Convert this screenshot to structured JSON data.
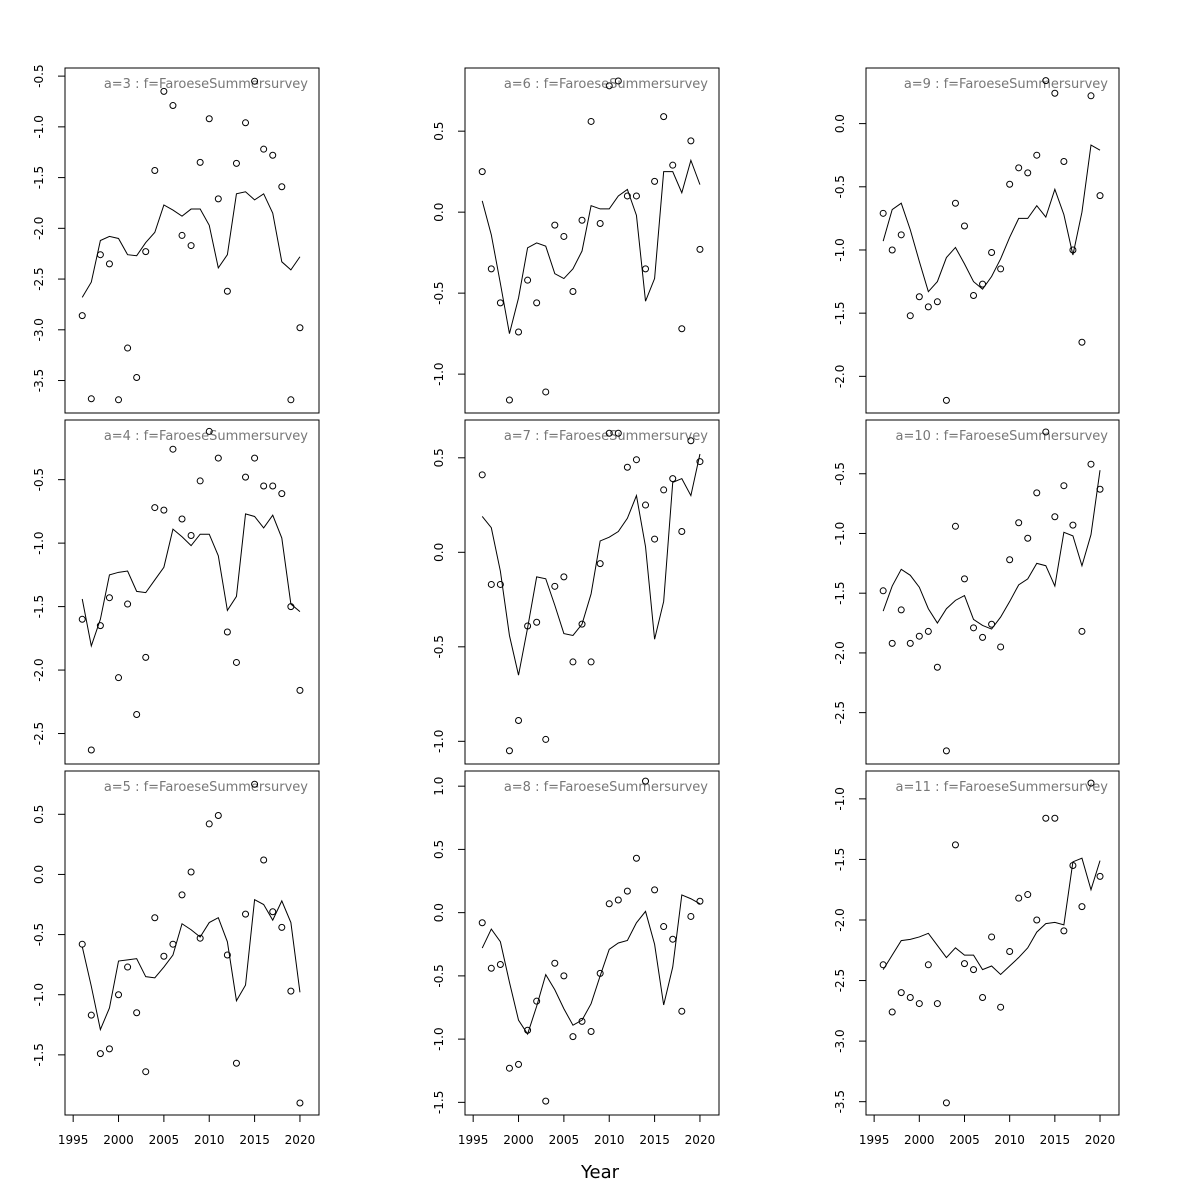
{
  "xlabel": "Year",
  "chart_data": [
    {
      "type": "scatter",
      "title": "a=3 : f=FaroeseSummersurvey",
      "x": [
        1996,
        1997,
        1998,
        1999,
        2000,
        2001,
        2002,
        2003,
        2004,
        2005,
        2006,
        2007,
        2008,
        2009,
        2010,
        2011,
        2012,
        2013,
        2014,
        2015,
        2016,
        2017,
        2018,
        2019,
        2020
      ],
      "series": [
        {
          "mode": "points",
          "color": "#000000",
          "values": [
            -2.86,
            -3.68,
            -2.26,
            -2.35,
            -3.69,
            -3.18,
            -3.47,
            -2.23,
            -1.43,
            -0.65,
            -0.79,
            -2.07,
            -2.17,
            -1.35,
            -0.92,
            -1.71,
            -2.62,
            -1.36,
            -0.96,
            -0.55,
            -1.22,
            -1.28,
            -1.59,
            -3.69,
            -2.98
          ]
        },
        {
          "mode": "line",
          "color": "#000000",
          "values": [
            -2.68,
            -2.53,
            -2.12,
            -2.08,
            -2.1,
            -2.26,
            -2.27,
            -2.14,
            -2.04,
            -1.77,
            -1.82,
            -1.88,
            -1.81,
            -1.81,
            -1.97,
            -2.39,
            -2.26,
            -1.66,
            -1.64,
            -1.72,
            -1.66,
            -1.85,
            -2.33,
            -2.41,
            -2.28
          ]
        }
      ],
      "xlim": [
        1994.1,
        2022.1
      ],
      "ylim": [
        -3.82,
        -0.42
      ],
      "yticks": [
        -0.5,
        {
          "value": -1,
          "label": "-1.0"
        },
        -1.5,
        {
          "value": -2,
          "label": "-2.0"
        },
        -2.5,
        {
          "value": -3,
          "label": "-3.0"
        },
        -3.5
      ]
    },
    {
      "type": "scatter",
      "title": "a=6 : f=FaroeseSummersurvey",
      "x": [
        1996,
        1997,
        1998,
        1999,
        2000,
        2001,
        2002,
        2003,
        2004,
        2005,
        2006,
        2007,
        2008,
        2009,
        2010,
        2011,
        2012,
        2013,
        2014,
        2015,
        2016,
        2017,
        2018,
        2019,
        2020
      ],
      "series": [
        {
          "mode": "points",
          "color": "#000000",
          "values": [
            0.25,
            -0.35,
            -0.56,
            -1.16,
            -0.74,
            -0.42,
            -0.56,
            -1.11,
            -0.08,
            -0.15,
            -0.49,
            -0.05,
            0.56,
            -0.07,
            0.78,
            0.81,
            0.1,
            0.1,
            -0.35,
            0.19,
            0.59,
            0.29,
            -0.72,
            0.44,
            -0.23
          ]
        },
        {
          "mode": "line",
          "color": "#000000",
          "values": [
            0.07,
            -0.14,
            -0.44,
            -0.75,
            -0.53,
            -0.22,
            -0.19,
            -0.21,
            -0.38,
            -0.41,
            -0.35,
            -0.24,
            0.04,
            0.02,
            0.02,
            0.1,
            0.14,
            -0.02,
            -0.55,
            -0.41,
            0.25,
            0.25,
            0.12,
            0.32,
            0.17
          ]
        }
      ],
      "xlim": [
        1994.1,
        2022.1
      ],
      "ylim": [
        -1.24,
        0.89
      ],
      "yticks": [
        0.5,
        {
          "value": 0,
          "label": "0.0"
        },
        -0.5,
        {
          "value": -1,
          "label": "-1.0"
        }
      ]
    },
    {
      "type": "scatter",
      "title": "a=9 : f=FaroeseSummersurvey",
      "x": [
        1996,
        1997,
        1998,
        1999,
        2000,
        2001,
        2002,
        2003,
        2004,
        2005,
        2006,
        2007,
        2008,
        2009,
        2010,
        2011,
        2012,
        2013,
        2014,
        2015,
        2016,
        2017,
        2018,
        2019,
        2020
      ],
      "series": [
        {
          "mode": "points",
          "color": "#000000",
          "values": [
            -0.71,
            -1.0,
            -0.88,
            -1.52,
            -1.37,
            -1.45,
            -1.41,
            -2.19,
            -0.63,
            -0.81,
            -1.36,
            -1.27,
            -1.02,
            -1.15,
            -0.48,
            -0.35,
            -0.39,
            -0.25,
            0.34,
            0.24,
            -0.3,
            -1.0,
            -1.73,
            0.22,
            -0.57
          ]
        },
        {
          "mode": "line",
          "color": "#000000",
          "values": [
            -0.93,
            -0.68,
            -0.63,
            -0.84,
            -1.09,
            -1.33,
            -1.25,
            -1.06,
            -0.98,
            -1.11,
            -1.25,
            -1.31,
            -1.21,
            -1.07,
            -0.9,
            -0.75,
            -0.75,
            -0.65,
            -0.74,
            -0.52,
            -0.72,
            -1.04,
            -0.7,
            -0.17,
            -0.21
          ]
        }
      ],
      "xlim": [
        1994.1,
        2022.1
      ],
      "ylim": [
        -2.29,
        0.44
      ],
      "yticks": [
        {
          "value": 0,
          "label": "0.0"
        },
        -0.5,
        {
          "value": -1,
          "label": "-1.0"
        },
        -1.5,
        {
          "value": -2,
          "label": "-2.0"
        }
      ]
    },
    {
      "type": "scatter",
      "title": "a=4 : f=FaroeseSummersurvey",
      "x": [
        1996,
        1997,
        1998,
        1999,
        2000,
        2001,
        2002,
        2003,
        2004,
        2005,
        2006,
        2007,
        2008,
        2009,
        2010,
        2011,
        2012,
        2013,
        2014,
        2015,
        2016,
        2017,
        2018,
        2019,
        2020
      ],
      "series": [
        {
          "mode": "points",
          "color": "#000000",
          "values": [
            -1.6,
            -2.63,
            -1.65,
            -1.43,
            -2.06,
            -1.48,
            -2.35,
            -1.9,
            -0.72,
            -0.74,
            -0.26,
            -0.81,
            -0.94,
            -0.51,
            -0.12,
            -0.33,
            -1.7,
            -1.94,
            -0.48,
            -0.33,
            -0.55,
            -0.55,
            -0.61,
            -1.5,
            -2.16
          ]
        },
        {
          "mode": "line",
          "color": "#000000",
          "values": [
            -1.44,
            -1.81,
            -1.6,
            -1.25,
            -1.23,
            -1.22,
            -1.38,
            -1.39,
            -1.29,
            -1.19,
            -0.89,
            -0.95,
            -1.02,
            -0.93,
            -0.93,
            -1.1,
            -1.53,
            -1.42,
            -0.77,
            -0.79,
            -0.88,
            -0.78,
            -0.96,
            -1.48,
            -1.54
          ]
        }
      ],
      "xlim": [
        1994.1,
        2022.1
      ],
      "ylim": [
        -2.74,
        -0.03
      ],
      "yticks": [
        -0.5,
        {
          "value": -1,
          "label": "-1.0"
        },
        -1.5,
        {
          "value": -2,
          "label": "-2.0"
        },
        -2.5
      ]
    },
    {
      "type": "scatter",
      "title": "a=7 : f=FaroeseSummersurvey",
      "x": [
        1996,
        1997,
        1998,
        1999,
        2000,
        2001,
        2002,
        2003,
        2004,
        2005,
        2006,
        2007,
        2008,
        2009,
        2010,
        2011,
        2012,
        2013,
        2014,
        2015,
        2016,
        2017,
        2018,
        2019,
        2020
      ],
      "series": [
        {
          "mode": "points",
          "color": "#000000",
          "values": [
            0.41,
            -0.17,
            -0.17,
            -1.05,
            -0.89,
            -0.39,
            -0.37,
            -0.99,
            -0.18,
            -0.13,
            -0.58,
            -0.38,
            -0.58,
            -0.06,
            0.63,
            0.63,
            0.45,
            0.49,
            0.25,
            0.07,
            0.33,
            0.39,
            0.11,
            0.59,
            0.48
          ]
        },
        {
          "mode": "line",
          "color": "#000000",
          "values": [
            0.19,
            0.13,
            -0.1,
            -0.44,
            -0.65,
            -0.4,
            -0.13,
            -0.14,
            -0.28,
            -0.43,
            -0.44,
            -0.38,
            -0.22,
            0.06,
            0.08,
            0.11,
            0.18,
            0.3,
            0.03,
            -0.46,
            -0.26,
            0.37,
            0.39,
            0.3,
            0.52
          ]
        }
      ],
      "xlim": [
        1994.1,
        2022.1
      ],
      "ylim": [
        -1.12,
        0.7
      ],
      "yticks": [
        0.5,
        {
          "value": 0,
          "label": "0.0"
        },
        -0.5,
        {
          "value": -1,
          "label": "-1.0"
        }
      ]
    },
    {
      "type": "scatter",
      "title": "a=10 : f=FaroeseSummersurvey",
      "x": [
        1996,
        1997,
        1998,
        1999,
        2000,
        2001,
        2002,
        2003,
        2004,
        2005,
        2006,
        2007,
        2008,
        2009,
        2010,
        2011,
        2012,
        2013,
        2014,
        2015,
        2016,
        2017,
        2018,
        2019,
        2020
      ],
      "series": [
        {
          "mode": "points",
          "color": "#000000",
          "values": [
            -1.48,
            -1.92,
            -1.64,
            -1.92,
            -1.86,
            -1.82,
            -2.12,
            -2.82,
            -0.94,
            -1.38,
            -1.79,
            -1.87,
            -1.76,
            -1.95,
            -1.22,
            -0.91,
            -1.04,
            -0.66,
            -0.15,
            -0.86,
            -0.6,
            -0.93,
            -1.82,
            -0.42,
            -0.63
          ]
        },
        {
          "mode": "line",
          "color": "#000000",
          "values": [
            -1.65,
            -1.44,
            -1.3,
            -1.35,
            -1.45,
            -1.63,
            -1.75,
            -1.63,
            -1.56,
            -1.52,
            -1.72,
            -1.77,
            -1.8,
            -1.7,
            -1.57,
            -1.43,
            -1.38,
            -1.25,
            -1.27,
            -1.44,
            -0.99,
            -1.02,
            -1.27,
            -1.01,
            -0.47
          ]
        }
      ],
      "xlim": [
        1994.1,
        2022.1
      ],
      "ylim": [
        -2.93,
        -0.05
      ],
      "yticks": [
        -0.5,
        {
          "value": -1,
          "label": "-1.0"
        },
        -1.5,
        {
          "value": -2,
          "label": "-2.0"
        },
        -2.5
      ]
    },
    {
      "type": "scatter",
      "title": "a=5 : f=FaroeseSummersurvey",
      "x": [
        1996,
        1997,
        1998,
        1999,
        2000,
        2001,
        2002,
        2003,
        2004,
        2005,
        2006,
        2007,
        2008,
        2009,
        2010,
        2011,
        2012,
        2013,
        2014,
        2015,
        2016,
        2017,
        2018,
        2019,
        2020
      ],
      "series": [
        {
          "mode": "points",
          "color": "#000000",
          "values": [
            -0.58,
            -1.17,
            -1.49,
            -1.45,
            -1.0,
            -0.77,
            -1.15,
            -1.64,
            -0.36,
            -0.68,
            -0.58,
            -0.17,
            0.02,
            -0.53,
            0.42,
            0.49,
            -0.67,
            -1.57,
            -0.33,
            0.75,
            0.12,
            -0.31,
            -0.44,
            -0.97,
            -1.9
          ]
        },
        {
          "mode": "line",
          "color": "#000000",
          "values": [
            -0.6,
            -0.93,
            -1.29,
            -1.11,
            -0.72,
            -0.71,
            -0.7,
            -0.85,
            -0.86,
            -0.77,
            -0.67,
            -0.41,
            -0.46,
            -0.52,
            -0.4,
            -0.36,
            -0.56,
            -1.05,
            -0.92,
            -0.21,
            -0.25,
            -0.38,
            -0.22,
            -0.4,
            -0.98
          ]
        }
      ],
      "xlim": [
        1994.1,
        2022.1
      ],
      "ylim": [
        -2.0,
        0.86
      ],
      "yticks": [
        0.5,
        {
          "value": 0,
          "label": "0.0"
        },
        -0.5,
        {
          "value": -1,
          "label": "-1.0"
        },
        -1.5
      ],
      "xticks": [
        1995,
        2000,
        2005,
        2010,
        2015,
        2020
      ]
    },
    {
      "type": "scatter",
      "title": "a=8 : f=FaroeseSummersurvey",
      "x": [
        1996,
        1997,
        1998,
        1999,
        2000,
        2001,
        2002,
        2003,
        2004,
        2005,
        2006,
        2007,
        2008,
        2009,
        2010,
        2011,
        2012,
        2013,
        2014,
        2015,
        2016,
        2017,
        2018,
        2019,
        2020
      ],
      "series": [
        {
          "mode": "points",
          "color": "#000000",
          "values": [
            -0.08,
            -0.44,
            -0.41,
            -1.23,
            -1.2,
            -0.93,
            -0.7,
            -1.49,
            -0.4,
            -0.5,
            -0.98,
            -0.86,
            -0.94,
            -0.48,
            0.07,
            0.1,
            0.17,
            0.43,
            1.04,
            0.18,
            -0.11,
            -0.21,
            -0.78,
            -0.03,
            0.09
          ]
        },
        {
          "mode": "line",
          "color": "#000000",
          "values": [
            -0.28,
            -0.13,
            -0.23,
            -0.55,
            -0.85,
            -0.96,
            -0.74,
            -0.49,
            -0.61,
            -0.76,
            -0.89,
            -0.85,
            -0.72,
            -0.5,
            -0.29,
            -0.24,
            -0.22,
            -0.08,
            0.01,
            -0.25,
            -0.73,
            -0.43,
            0.14,
            0.11,
            0.07
          ]
        }
      ],
      "xlim": [
        1994.1,
        2022.1
      ],
      "ylim": [
        -1.6,
        1.12
      ],
      "yticks": [
        {
          "value": 1,
          "label": "1.0"
        },
        0.5,
        {
          "value": 0,
          "label": "0.0"
        },
        -0.5,
        {
          "value": -1,
          "label": "-1.0"
        },
        -1.5
      ],
      "xticks": [
        1995,
        2000,
        2005,
        2010,
        2015,
        2020
      ]
    },
    {
      "type": "scatter",
      "title": "a=11 : f=FaroeseSummersurvey",
      "x": [
        1996,
        1997,
        1998,
        1999,
        2000,
        2001,
        2002,
        2003,
        2004,
        2005,
        2006,
        2007,
        2008,
        2009,
        2010,
        2011,
        2012,
        2013,
        2014,
        2015,
        2016,
        2017,
        2018,
        2019,
        2020
      ],
      "series": [
        {
          "mode": "points",
          "color": "#000000",
          "values": [
            -2.37,
            -2.76,
            -2.6,
            -2.64,
            -2.69,
            -2.37,
            -2.69,
            -3.51,
            -1.38,
            -2.36,
            -2.41,
            -2.64,
            -2.14,
            -2.72,
            -2.26,
            -1.82,
            -1.79,
            -2.0,
            -1.16,
            -1.16,
            -2.09,
            -1.55,
            -1.89,
            -0.87,
            -1.64
          ]
        },
        {
          "mode": "line",
          "color": "#000000",
          "values": [
            -2.41,
            -2.29,
            -2.17,
            -2.16,
            -2.14,
            -2.11,
            -2.21,
            -2.31,
            -2.23,
            -2.29,
            -2.29,
            -2.41,
            -2.38,
            -2.45,
            -2.38,
            -2.31,
            -2.23,
            -2.1,
            -2.03,
            -2.02,
            -2.04,
            -1.52,
            -1.49,
            -1.75,
            -1.51
          ]
        }
      ],
      "xlim": [
        1994.1,
        2022.1
      ],
      "ylim": [
        -3.61,
        -0.77
      ],
      "yticks": [
        {
          "value": -1,
          "label": "-1.0"
        },
        -1.5,
        {
          "value": -2,
          "label": "-2.0"
        },
        -2.5,
        {
          "value": -3,
          "label": "-3.0"
        },
        -3.5
      ],
      "xticks": [
        1995,
        2000,
        2005,
        2010,
        2015,
        2020
      ]
    }
  ]
}
